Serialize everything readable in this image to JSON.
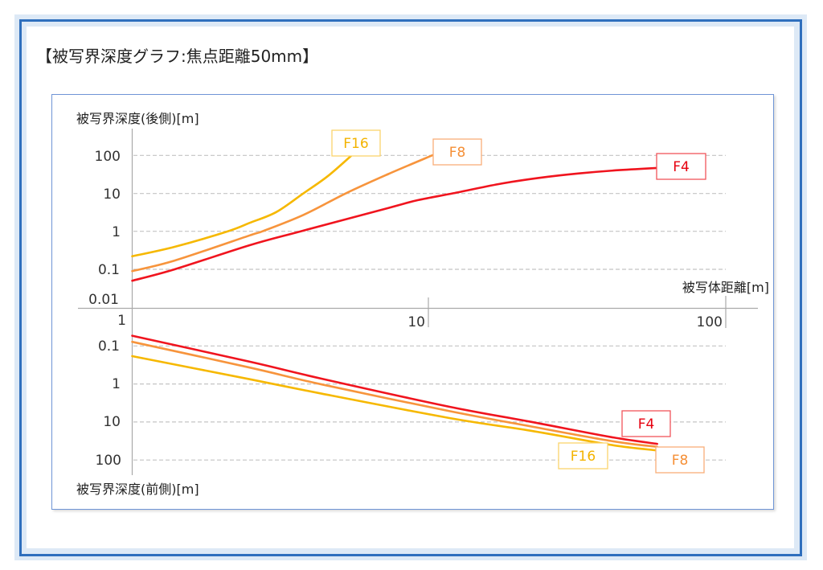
{
  "title": "【被写界深度グラフ:焦点距離50mm】",
  "colors": {
    "frame_border": "#2f6fbd",
    "frame_band": "#dde9f6",
    "panel_border": "#6f95d6",
    "F4": "#f0141e",
    "F8": "#f7943c",
    "F16": "#f6b800"
  },
  "chart_data": {
    "type": "line",
    "title": "【被写界深度グラフ:焦点距離50mm】",
    "xlabel": "被写体距離[m]",
    "x_scale": "log",
    "xlim": [
      1,
      100
    ],
    "x_ticks": [
      "1",
      "10",
      "100"
    ],
    "grid": true,
    "legend": "inline labels at line ends",
    "panels": [
      {
        "name": "back",
        "ylabel": "被写界深度(後側)[m]",
        "y_scale": "log",
        "ylim": [
          0.01,
          100
        ],
        "y_ticks": [
          "100",
          "10",
          "1",
          "0.1",
          "0.01"
        ],
        "series": [
          {
            "name": "F16",
            "color": "#f6b800",
            "points": [
              [
                1,
                0.22
              ],
              [
                1.39,
                0.39
              ],
              [
                2.1,
                1
              ],
              [
                2.49,
                1.67
              ],
              [
                3.06,
                3.2
              ],
              [
                3.78,
                10
              ],
              [
                4.56,
                28
              ],
              [
                5.5,
                100
              ]
            ]
          },
          {
            "name": "F8",
            "color": "#f7943c",
            "points": [
              [
                1,
                0.09
              ],
              [
                1.39,
                0.17
              ],
              [
                2.49,
                0.78
              ],
              [
                2.75,
                1
              ],
              [
                3.78,
                2.7
              ],
              [
                5.26,
                10
              ],
              [
                7.3,
                32
              ],
              [
                10.3,
                100
              ]
            ]
          },
          {
            "name": "F4",
            "color": "#f0141e",
            "points": [
              [
                1,
                0.05
              ],
              [
                1.39,
                0.1
              ],
              [
                2.49,
                0.43
              ],
              [
                3.7,
                1
              ],
              [
                7.3,
                4.1
              ],
              [
                9.2,
                6.6
              ],
              [
                12.1,
                10
              ],
              [
                17.2,
                17.4
              ],
              [
                23.5,
                25.3
              ],
              [
                32.1,
                33.3
              ],
              [
                43.9,
                40.6
              ],
              [
                58.9,
                46.3
              ]
            ]
          }
        ],
        "labels": [
          "F16",
          "F8",
          "F4"
        ]
      },
      {
        "name": "front",
        "ylabel": "被写界深度(前側)[m]",
        "y_scale": "log",
        "y_inverted": true,
        "ylim": [
          0.01,
          100
        ],
        "y_ticks": [
          "0.1",
          "1",
          "10",
          "100"
        ],
        "series": [
          {
            "name": "F4",
            "color": "#f0141e",
            "points": [
              [
                1,
                0.054
              ],
              [
                2.49,
                0.26
              ],
              [
                4.36,
                0.73
              ],
              [
                11.8,
                4.0
              ],
              [
                22.1,
                9.9
              ],
              [
                41.2,
                25
              ],
              [
                58.9,
                37.5
              ]
            ]
          },
          {
            "name": "F8",
            "color": "#f7943c",
            "points": [
              [
                1,
                0.078
              ],
              [
                2.49,
                0.37
              ],
              [
                4.36,
                1.03
              ],
              [
                11.8,
                5.2
              ],
              [
                22.1,
                13.1
              ],
              [
                41.2,
                31.6
              ],
              [
                58.9,
                45
              ]
            ]
          },
          {
            "name": "F16",
            "color": "#f6b800",
            "points": [
              [
                1,
                0.186
              ],
              [
                2.49,
                0.75
              ],
              [
                4.36,
                1.8
              ],
              [
                11.8,
                7.9
              ],
              [
                22.1,
                17
              ],
              [
                41.2,
                40
              ],
              [
                58.9,
                56
              ]
            ]
          }
        ],
        "labels": [
          "F4",
          "F16",
          "F8"
        ]
      }
    ]
  }
}
